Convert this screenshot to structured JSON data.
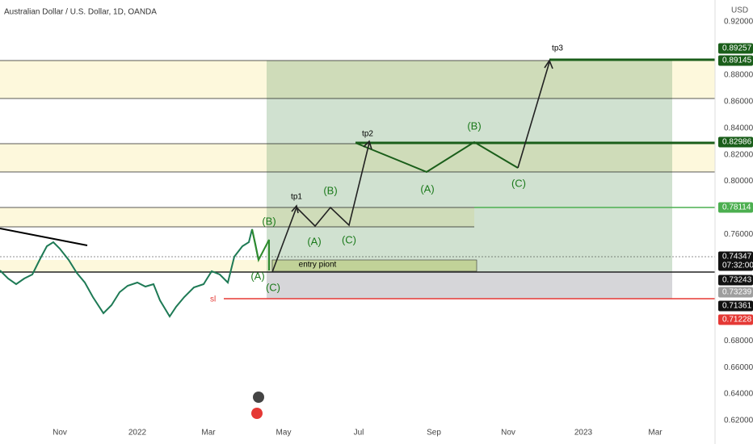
{
  "header": {
    "title": "Australian Dollar / U.S. Dollar, 1D, OANDA",
    "currency": "USD"
  },
  "price_axis": [
    "0.92000",
    "0.88000",
    "0.86000",
    "0.84000",
    "0.82000",
    "0.80000",
    "0.76000",
    "0.68000",
    "0.66000",
    "0.64000",
    "0.62000"
  ],
  "time_axis": [
    "Nov",
    "2022",
    "Mar",
    "May",
    "Jul",
    "Sep",
    "Nov",
    "2023",
    "Mar"
  ],
  "badges": [
    {
      "label": "0.89257",
      "kind": "tp"
    },
    {
      "label": "0.89145",
      "kind": "tp"
    },
    {
      "label": "0.82986",
      "kind": "tp"
    },
    {
      "label": "0.78114",
      "kind": "tp1"
    },
    {
      "label": "0.74347",
      "sub": "07:32:00",
      "kind": "last"
    },
    {
      "label": "0.73243",
      "kind": "last"
    },
    {
      "label": "0.73239",
      "kind": "grey"
    },
    {
      "label": "0.71361",
      "kind": "last"
    },
    {
      "label": "0.71228",
      "kind": "sl"
    }
  ],
  "annotations": {
    "tp1": "tp1",
    "tp2": "tp2",
    "tp3": "tp3",
    "entry": "entry piont",
    "sl": "sl",
    "waves": [
      "(B)",
      "(A)",
      "(B)",
      "(C)",
      "(A)",
      "(B)",
      "(C)",
      "(A)",
      "(C)"
    ]
  }
}
